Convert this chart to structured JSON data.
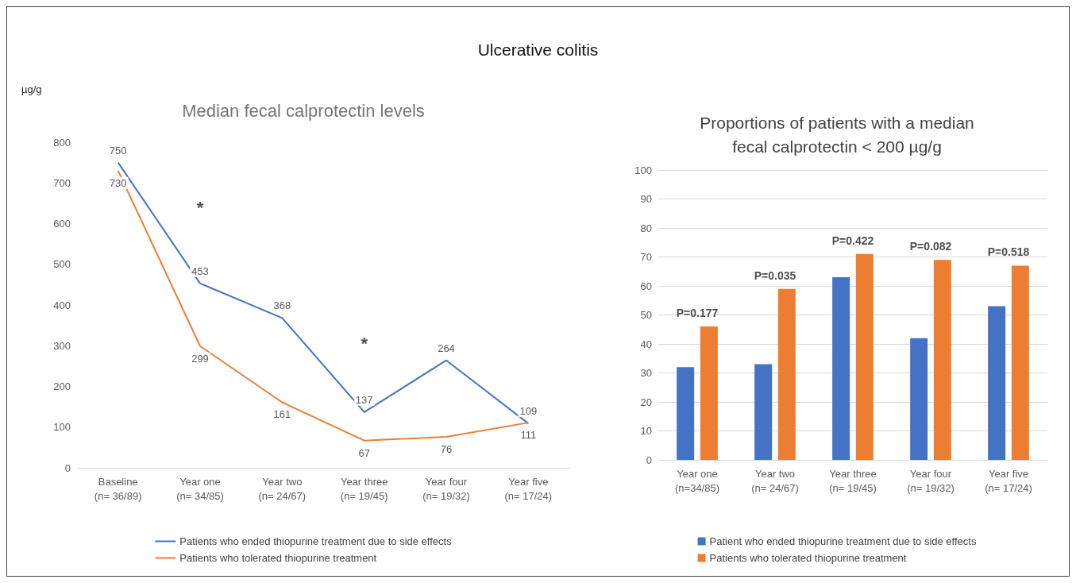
{
  "chart_data": [
    {
      "type": "line",
      "title": "Median fecal calprotectin levels",
      "ylabel": "µg/g",
      "categories": [
        "Baseline\n(n= 36/89)",
        "Year one\n(n= 34/85)",
        "Year two\n(n= 24/67)",
        "Year three\n(n= 19/45)",
        "Year four\n(n= 19/32)",
        "Year five\n(n= 17/24)"
      ],
      "series": [
        {
          "name": "Patients who ended thiopurine treatment due to side effects",
          "color": "#4472c4",
          "values": [
            750,
            453,
            368,
            137,
            264,
            109
          ]
        },
        {
          "name": "Patients who tolerated thiopurine treatment",
          "color": "#ed7d31",
          "values": [
            730,
            299,
            161,
            67,
            76,
            111
          ]
        }
      ],
      "ylim": [
        0,
        800
      ],
      "yticks": [
        0,
        100,
        200,
        300,
        400,
        500,
        600,
        700,
        800
      ],
      "grid": false,
      "legend": "bottom",
      "data_labels": true,
      "marker": "none",
      "annotations": [
        "Ulcerative colitis",
        "*",
        "*"
      ]
    },
    {
      "type": "bar",
      "title": "Proportions of patients with a median\nfecal calprotectin < 200 µg/g",
      "categories": [
        "Year one\n(n=34/85)",
        "Year two\n(n= 24/67)",
        "Year three\n(n= 19/45)",
        "Year four\n(n= 19/32)",
        "Year five\n(n= 17/24)"
      ],
      "series": [
        {
          "name": "Patient who ended thiopurine treatment due to side effects",
          "color": "#4472c4",
          "values": [
            32,
            33,
            63,
            42,
            53
          ]
        },
        {
          "name": "Patients who tolerated thiopurine treatment",
          "color": "#ed7d31",
          "values": [
            46,
            59,
            71,
            69,
            67
          ]
        }
      ],
      "ylim": [
        0,
        100
      ],
      "yticks": [
        0,
        10,
        20,
        30,
        40,
        50,
        60,
        70,
        80,
        90,
        100
      ],
      "grid": "y",
      "legend": "bottom",
      "annotations": [
        "P=0.177",
        "P=0.035",
        "P=0.422",
        "P=0.082",
        "P=0.518"
      ]
    }
  ]
}
